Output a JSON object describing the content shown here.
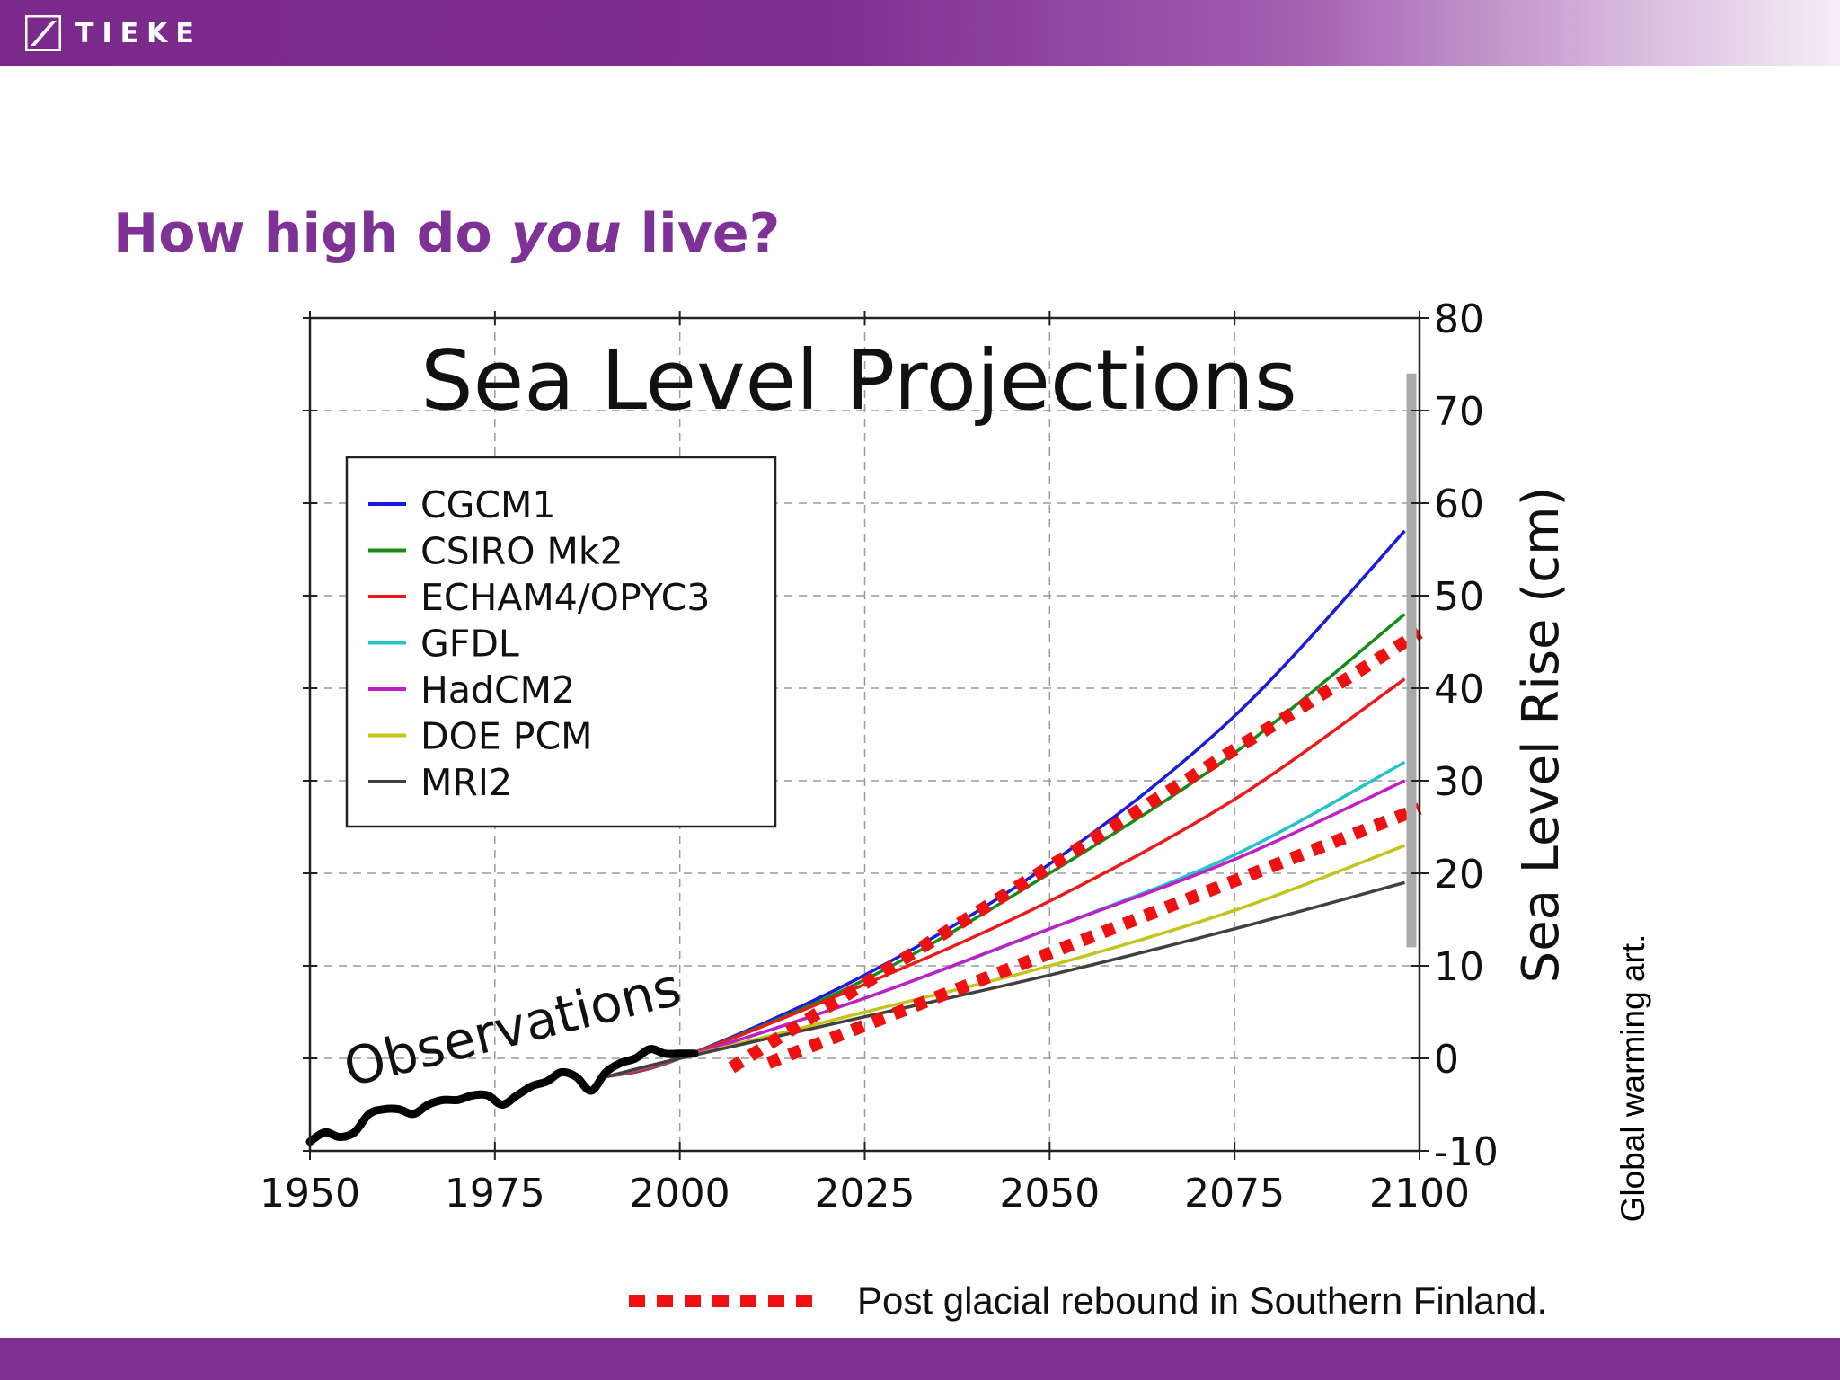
{
  "slide": {
    "logo_text": "TIEKE",
    "title_prefix": "How high do ",
    "title_emphasis": "you",
    "title_suffix": " live?",
    "side_caption": "Global warming art.",
    "footnote": "Post glacial rebound in Southern Finland."
  },
  "colors": {
    "brand_purple": "#7e2f90",
    "title_purple": "#7e3296",
    "rebound_red": "#ee1111"
  },
  "chart_data": {
    "type": "line",
    "title": "Sea Level Projections",
    "xlabel": "",
    "ylabel": "Sea Level Rise (cm)",
    "xlim": [
      1950,
      2100
    ],
    "ylim": [
      -10,
      80
    ],
    "x_ticks": [
      "1950",
      "1975",
      "2000",
      "2025",
      "2050",
      "2075",
      "2100"
    ],
    "y_ticks": [
      "-10",
      "0",
      "10",
      "20",
      "30",
      "40",
      "50",
      "60",
      "70",
      "80"
    ],
    "y_axis_side": "right",
    "grid": true,
    "legend_position": "top-left",
    "series": [
      {
        "name": "CGCM1",
        "color": "#1b1bdc",
        "x": [
          1990,
          2000,
          2025,
          2050,
          2075,
          2098
        ],
        "y": [
          -2,
          0,
          9,
          21,
          37,
          57
        ]
      },
      {
        "name": "CSIRO Mk2",
        "color": "#178a17",
        "x": [
          1990,
          2000,
          2025,
          2050,
          2075,
          2098
        ],
        "y": [
          -2,
          0,
          8.5,
          20,
          33,
          48
        ]
      },
      {
        "name": "ECHAM4/OPYC3",
        "color": "#ee1a1a",
        "x": [
          1990,
          2000,
          2025,
          2050,
          2075,
          2098
        ],
        "y": [
          -2,
          0,
          8,
          17,
          28,
          41
        ]
      },
      {
        "name": "GFDL",
        "color": "#22c3c9",
        "x": [
          1990,
          2000,
          2025,
          2050,
          2075,
          2098
        ],
        "y": [
          -2,
          0,
          6.5,
          14,
          22,
          32
        ]
      },
      {
        "name": "HadCM2",
        "color": "#c01fc8",
        "x": [
          1990,
          2000,
          2025,
          2050,
          2075,
          2098
        ],
        "y": [
          -2,
          0,
          6.5,
          14,
          21.5,
          30
        ]
      },
      {
        "name": "DOE PCM",
        "color": "#c3c31a",
        "x": [
          1990,
          2000,
          2025,
          2050,
          2075,
          2098
        ],
        "y": [
          -2,
          0,
          5,
          10,
          16,
          23
        ]
      },
      {
        "name": "MRI2",
        "color": "#404040",
        "x": [
          1990,
          2000,
          2025,
          2050,
          2075,
          2098
        ],
        "y": [
          -2,
          0,
          4.5,
          9,
          14,
          19
        ]
      }
    ],
    "observations": {
      "label": "Observations",
      "color": "#000000",
      "x": [
        1950,
        1952,
        1954,
        1956,
        1958,
        1960,
        1962,
        1964,
        1966,
        1968,
        1970,
        1972,
        1974,
        1976,
        1978,
        1980,
        1982,
        1984,
        1986,
        1988,
        1990,
        1992,
        1994,
        1996,
        1998,
        2000,
        2002
      ],
      "y": [
        -9,
        -8,
        -8.5,
        -8,
        -6,
        -5.5,
        -5.5,
        -6,
        -5,
        -4.5,
        -4.5,
        -4,
        -4,
        -5,
        -4,
        -3,
        -2.5,
        -1.5,
        -2,
        -3.5,
        -1.5,
        -0.5,
        0,
        1,
        0.5,
        0.5,
        0.5
      ]
    },
    "projection_range_bar": {
      "color": "#aaaaaa",
      "y": [
        12,
        74
      ]
    },
    "post_glacial_rebound": {
      "color": "#ee1111",
      "lines": [
        {
          "x": [
            2007,
            2100
          ],
          "y": [
            -1,
            46
          ]
        },
        {
          "x": [
            2012,
            2100
          ],
          "y": [
            -0.5,
            27
          ]
        }
      ]
    }
  }
}
